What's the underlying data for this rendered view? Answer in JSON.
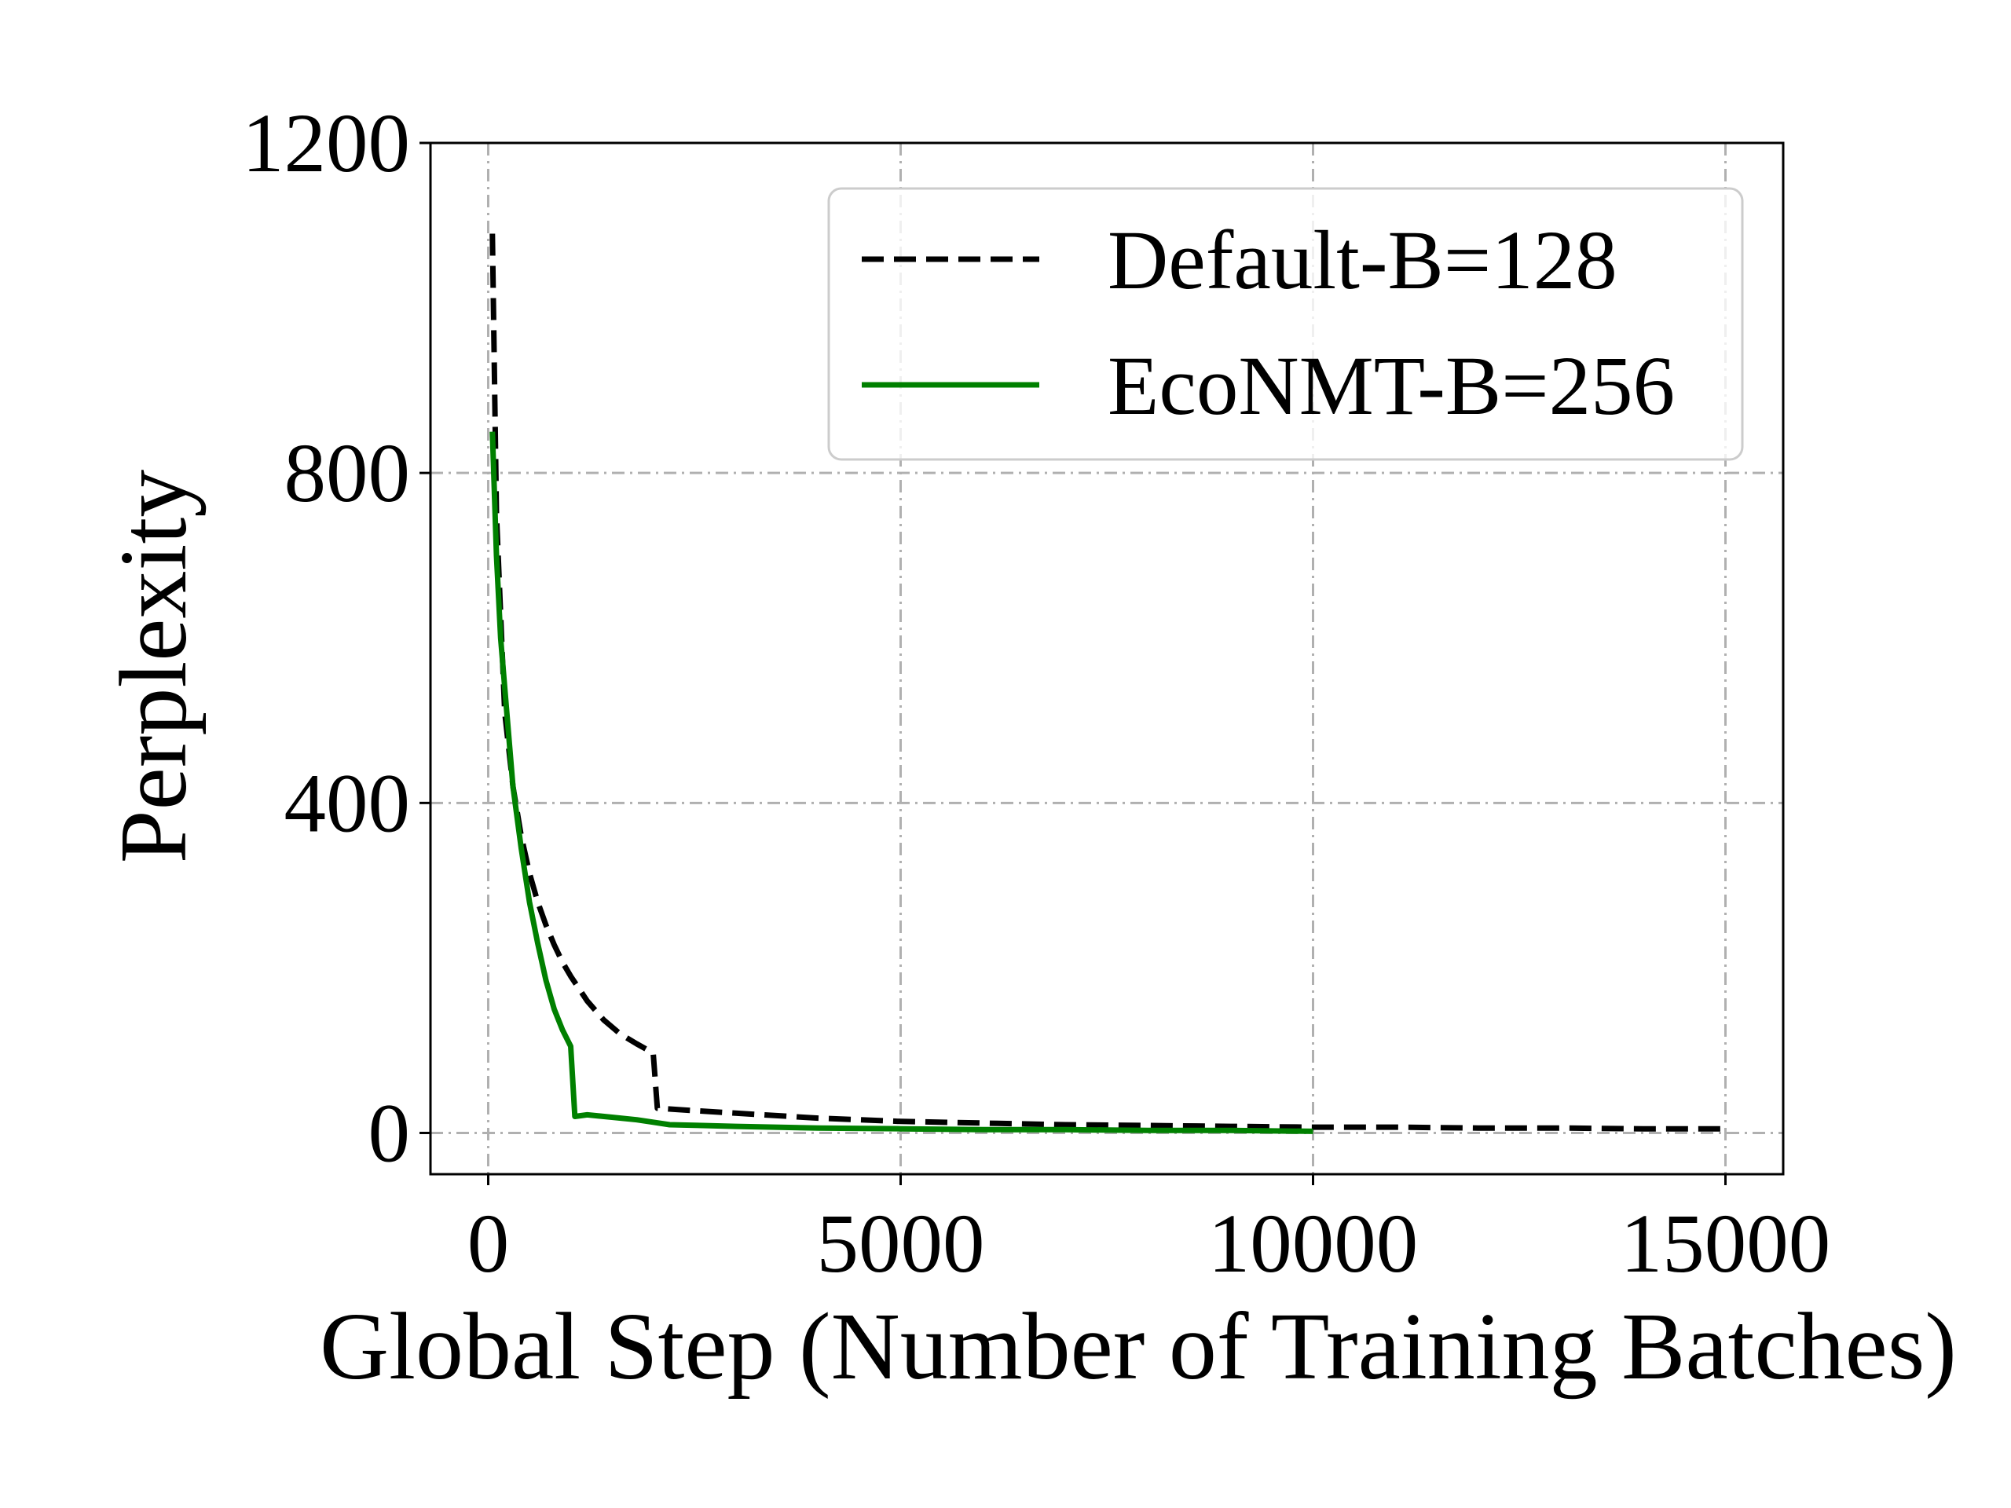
{
  "chart_data": {
    "type": "line",
    "title": "",
    "xlabel": "Global Step (Number of Training Batches)",
    "ylabel": "Perplexity",
    "xlim": [
      -700,
      15700
    ],
    "ylim": [
      -50,
      1200
    ],
    "x_ticks": [
      0,
      5000,
      10000,
      15000
    ],
    "x_tick_labels": [
      "0",
      "5000",
      "10000",
      "15000"
    ],
    "y_ticks": [
      0,
      400,
      800,
      1200
    ],
    "y_tick_labels": [
      "0",
      "400",
      "800",
      "1200"
    ],
    "grid": true,
    "legend_position": "top-right",
    "series": [
      {
        "name": "Default-B=128",
        "color": "#000000",
        "style": "dashed",
        "x": [
          50,
          100,
          200,
          300,
          400,
          500,
          600,
          700,
          800,
          900,
          1000,
          1200,
          1400,
          1600,
          1800,
          2000,
          2050,
          2500,
          3000,
          4000,
          5000,
          6000,
          7000,
          8000,
          9000,
          10000,
          11000,
          12000,
          13000,
          14000,
          15000
        ],
        "values": [
          1090,
          750,
          510,
          420,
          360,
          315,
          280,
          252,
          228,
          207,
          190,
          160,
          137,
          120,
          108,
          97,
          30,
          27,
          24,
          18,
          14,
          12,
          10,
          9,
          8,
          7,
          7,
          6,
          6,
          5,
          5
        ]
      },
      {
        "name": "EcoNMT-B=256",
        "color": "#008000",
        "style": "solid",
        "x": [
          50,
          100,
          150,
          200,
          300,
          400,
          500,
          600,
          700,
          800,
          900,
          1000,
          1050,
          1200,
          1500,
          1800,
          2000,
          2200,
          2600,
          3000,
          4000,
          5000,
          6000,
          7000,
          8000,
          9000,
          10000
        ],
        "values": [
          850,
          700,
          600,
          540,
          420,
          345,
          280,
          230,
          185,
          150,
          125,
          105,
          20,
          22,
          19,
          16,
          13,
          10,
          9,
          8,
          6,
          5,
          4,
          4,
          3,
          3,
          2
        ]
      }
    ]
  }
}
